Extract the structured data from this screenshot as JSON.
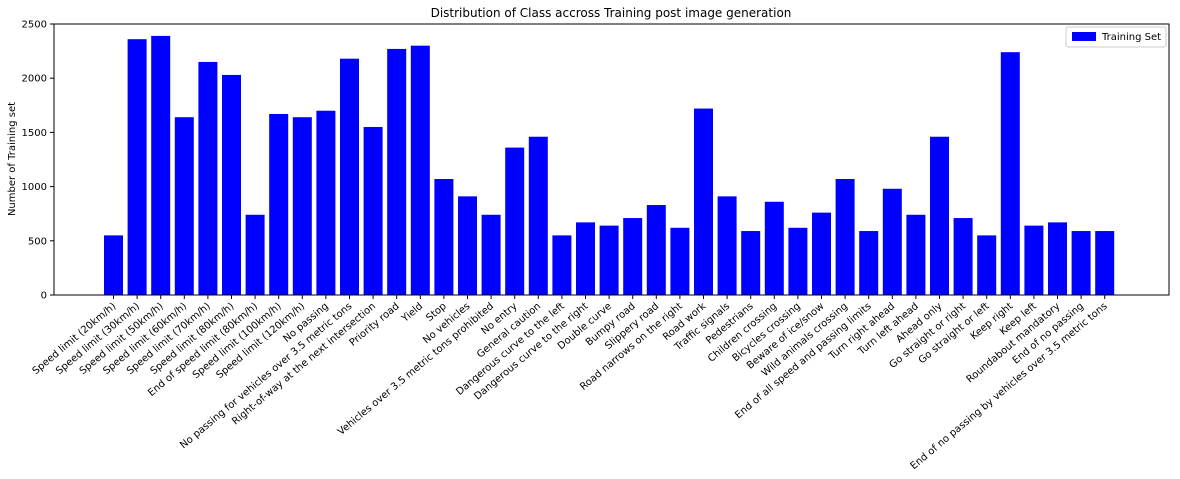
{
  "chart_data": {
    "type": "bar",
    "title": "Distribution of Class accross Training post image generation",
    "xlabel": "",
    "ylabel": "Number of Training set",
    "ylim": [
      0,
      2500
    ],
    "yticks": [
      0,
      500,
      1000,
      1500,
      2000,
      2500
    ],
    "grid": false,
    "legend_position": "top-right",
    "bar_color": "#0000ff",
    "categories": [
      "Speed limit (20km/h)",
      "Speed limit (30km/h)",
      "Speed limit (50km/h)",
      "Speed limit (60km/h)",
      "Speed limit (70km/h)",
      "Speed limit (80km/h)",
      "End of speed limit (80km/h)",
      "Speed limit (100km/h)",
      "Speed limit (120km/h)",
      "No passing",
      "No passing for vehicles over 3.5 metric tons",
      "Right-of-way at the next intersection",
      "Priority road",
      "Yield",
      "Stop",
      "No vehicles",
      "Vehicles over 3.5 metric tons prohibited",
      "No entry",
      "General caution",
      "Dangerous curve to the left",
      "Dangerous curve to the right",
      "Double curve",
      "Bumpy road",
      "Slippery road",
      "Road narrows on the right",
      "Road work",
      "Traffic signals",
      "Pedestrians",
      "Children crossing",
      "Bicycles crossing",
      "Beware of ice/snow",
      "Wild animals crossing",
      "End of all speed and passing limits",
      "Turn right ahead",
      "Turn left ahead",
      "Ahead only",
      "Go straight or right",
      "Go straight or left",
      "Keep right",
      "Keep left",
      "Roundabout mandatory",
      "End of no passing",
      "End of no passing by vehicles over 3.5 metric tons"
    ],
    "series": [
      {
        "name": "Training Set",
        "color": "#0000ff",
        "values": [
          550,
          2360,
          2390,
          1640,
          2150,
          2030,
          740,
          1670,
          1640,
          1700,
          2180,
          1550,
          2270,
          2300,
          1070,
          910,
          740,
          1360,
          1460,
          550,
          670,
          640,
          710,
          830,
          620,
          1720,
          910,
          590,
          860,
          620,
          760,
          1070,
          590,
          980,
          740,
          1460,
          710,
          550,
          2240,
          640,
          670,
          590,
          590
        ]
      }
    ]
  }
}
